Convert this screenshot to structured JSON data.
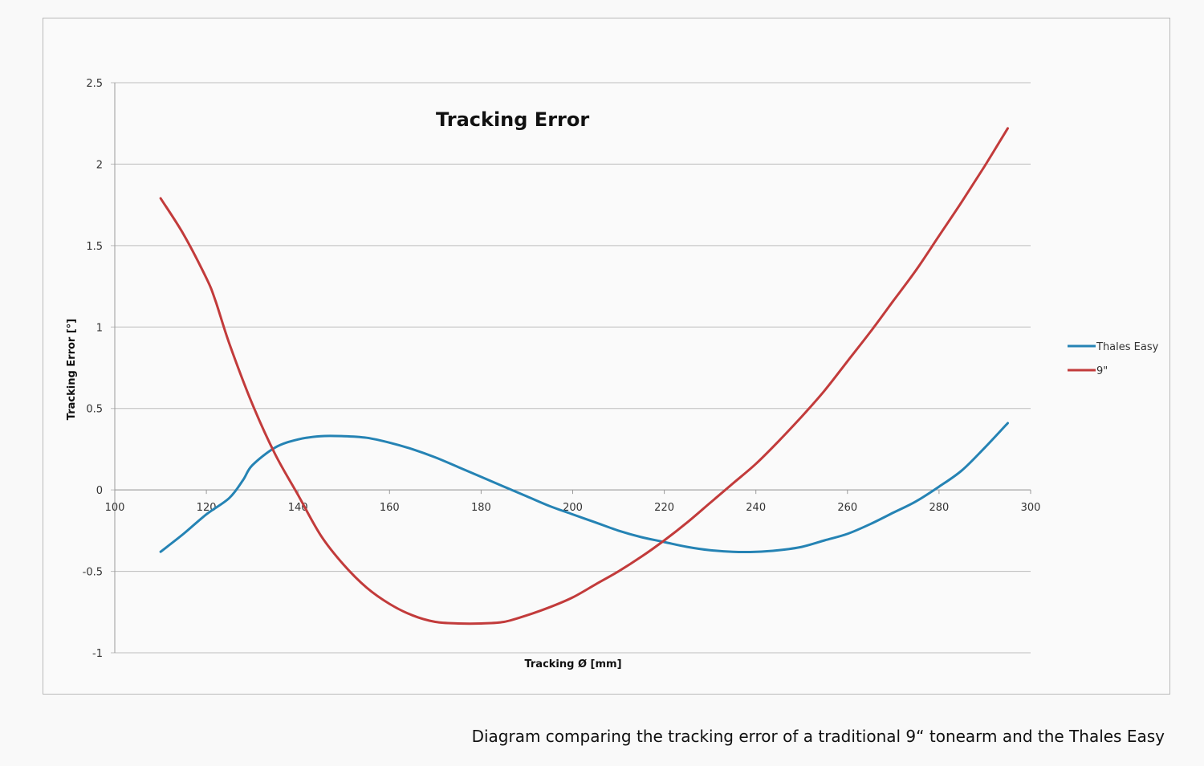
{
  "caption": "Diagram comparing the tracking error of a traditional 9“ tonearm and the Thales Easy",
  "chart_data": {
    "type": "line",
    "title": "Tracking Error",
    "xlabel": "Tracking Ø [mm]",
    "ylabel": "Tracking Error [°]",
    "xlim": [
      100,
      300
    ],
    "ylim": [
      -1,
      2.5
    ],
    "xticks": [
      100,
      120,
      140,
      160,
      180,
      200,
      220,
      240,
      260,
      280,
      300
    ],
    "xtick_labels": [
      "100",
      "120",
      "140",
      "160",
      "180",
      "200",
      "220",
      "240",
      "260",
      "280",
      "300"
    ],
    "yticks": [
      -1,
      -0.5,
      0,
      0.5,
      1,
      1.5,
      2,
      2.5
    ],
    "ytick_labels": [
      "-1",
      "-0.5",
      "0",
      "0.5",
      "1",
      "1.5",
      "2",
      "2.5"
    ],
    "grid": true,
    "legend_position": "right",
    "series": [
      {
        "name": "Thales Easy",
        "color": "#2583b4",
        "x": [
          110,
          115,
          120,
          125,
          128,
          130,
          135,
          140,
          145,
          150,
          155,
          160,
          165,
          170,
          175,
          180,
          185,
          190,
          195,
          200,
          205,
          210,
          215,
          220,
          225,
          230,
          235,
          240,
          245,
          250,
          255,
          260,
          265,
          270,
          275,
          280,
          285,
          290,
          295
        ],
        "y": [
          -0.38,
          -0.27,
          -0.15,
          -0.05,
          0.06,
          0.15,
          0.26,
          0.31,
          0.33,
          0.33,
          0.32,
          0.29,
          0.25,
          0.2,
          0.14,
          0.08,
          0.02,
          -0.04,
          -0.1,
          -0.15,
          -0.2,
          -0.25,
          -0.29,
          -0.32,
          -0.35,
          -0.37,
          -0.38,
          -0.38,
          -0.37,
          -0.35,
          -0.31,
          -0.27,
          -0.21,
          -0.14,
          -0.07,
          0.02,
          0.12,
          0.26,
          0.41
        ]
      },
      {
        "name": "9\"",
        "color": "#c23b3b",
        "x": [
          110,
          115,
          120,
          122,
          125,
          130,
          135,
          140,
          145,
          150,
          155,
          160,
          165,
          170,
          175,
          180,
          185,
          190,
          195,
          200,
          205,
          210,
          215,
          220,
          225,
          230,
          235,
          240,
          245,
          250,
          255,
          260,
          265,
          270,
          275,
          280,
          285,
          290,
          295
        ],
        "y": [
          1.79,
          1.57,
          1.3,
          1.16,
          0.9,
          0.53,
          0.22,
          -0.03,
          -0.28,
          -0.46,
          -0.6,
          -0.7,
          -0.77,
          -0.81,
          -0.82,
          -0.82,
          -0.81,
          -0.77,
          -0.72,
          -0.66,
          -0.58,
          -0.5,
          -0.41,
          -0.31,
          -0.2,
          -0.08,
          0.04,
          0.16,
          0.3,
          0.45,
          0.61,
          0.79,
          0.97,
          1.16,
          1.35,
          1.56,
          1.77,
          1.99,
          2.22
        ]
      }
    ]
  }
}
